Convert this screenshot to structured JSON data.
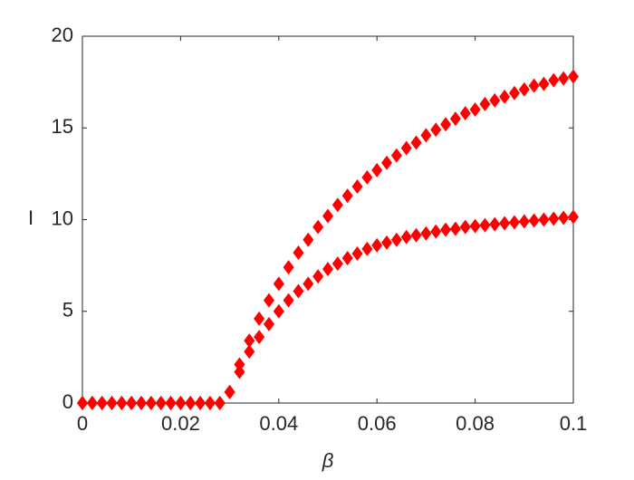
{
  "chart_data": {
    "type": "scatter",
    "xlabel": "β",
    "ylabel": "I",
    "x": [
      0,
      0.002,
      0.004,
      0.006,
      0.008,
      0.01,
      0.012,
      0.014,
      0.016,
      0.018,
      0.02,
      0.022,
      0.024,
      0.026,
      0.028,
      0.03,
      0.032,
      0.034,
      0.036,
      0.038,
      0.04,
      0.042,
      0.044,
      0.046,
      0.048,
      0.05,
      0.052,
      0.054,
      0.056,
      0.058,
      0.06,
      0.062,
      0.064,
      0.066,
      0.068,
      0.07,
      0.072,
      0.074,
      0.076,
      0.078,
      0.08,
      0.082,
      0.084,
      0.086,
      0.088,
      0.09,
      0.092,
      0.094,
      0.096,
      0.098,
      0.1
    ],
    "series": [
      {
        "color": "#ff0000",
        "values": [
          0,
          0,
          0,
          0,
          0,
          0,
          0,
          0,
          0,
          0,
          0,
          0,
          0,
          0,
          0,
          0.6,
          2.1,
          3.4,
          4.6,
          5.6,
          6.5,
          7.4,
          8.2,
          8.9,
          9.6,
          10.2,
          10.8,
          11.3,
          11.8,
          12.3,
          12.7,
          13.1,
          13.5,
          13.9,
          14.2,
          14.6,
          14.9,
          15.2,
          15.5,
          15.8,
          16.0,
          16.3,
          16.5,
          16.7,
          16.9,
          17.1,
          17.3,
          17.4,
          17.6,
          17.7,
          17.8
        ]
      },
      {
        "color": "#ff0000",
        "values": [
          0,
          0,
          0,
          0,
          0,
          0,
          0,
          0,
          0,
          0,
          0,
          0,
          0,
          0,
          0,
          0.6,
          1.7,
          2.8,
          3.6,
          4.3,
          5.0,
          5.6,
          6.1,
          6.5,
          6.9,
          7.3,
          7.6,
          7.9,
          8.15,
          8.4,
          8.6,
          8.75,
          8.9,
          9.05,
          9.15,
          9.25,
          9.35,
          9.45,
          9.5,
          9.6,
          9.65,
          9.7,
          9.75,
          9.8,
          9.85,
          9.9,
          9.95,
          10.0,
          10.05,
          10.1,
          10.15
        ]
      }
    ],
    "xlim": [
      0,
      0.1
    ],
    "xticks": [
      0,
      0.02,
      0.04,
      0.06,
      0.08,
      0.1
    ],
    "ylim": [
      0,
      20
    ],
    "yticks": [
      0,
      5,
      10,
      15,
      20
    ],
    "grid": false,
    "marker": "diamond"
  }
}
